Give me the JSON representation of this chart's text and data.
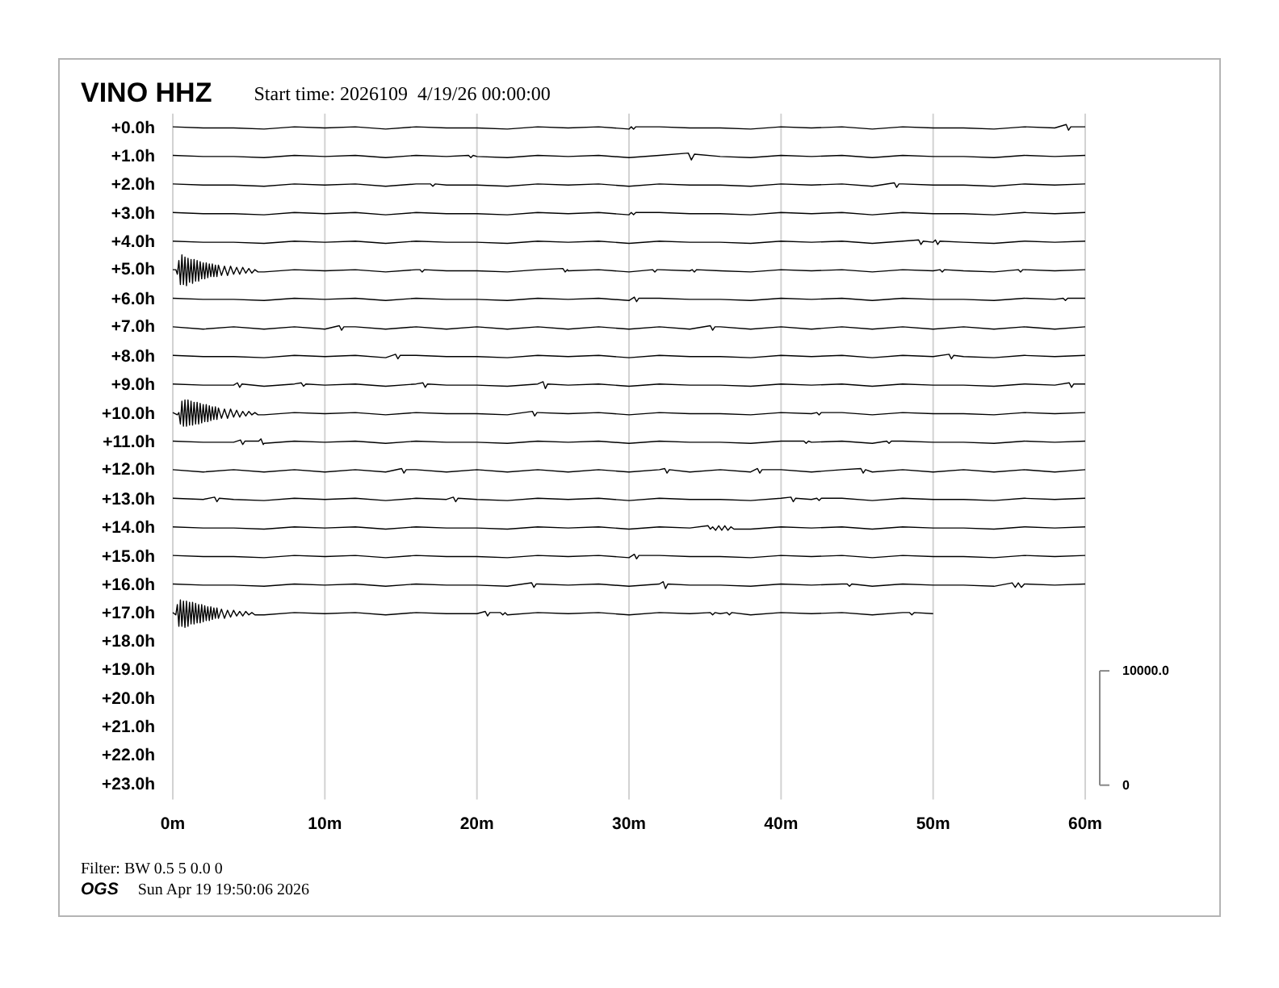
{
  "chart_data": {
    "type": "line",
    "title": "VINO HHZ",
    "subtitle": "Start time: 2026109  4/19/26 00:00:00",
    "annotations": [
      "+18.0h",
      "+19.0h",
      "+20.0h",
      "+21.0h",
      "+22.0h",
      "+23.0h",
      "Filter: BW 0.5 5 0.0 0",
      "OGS",
      "Sun Apr 19 19:50:06 2026"
    ],
    "xlim": [
      0,
      60
    ],
    "xticks": [
      {
        "value": 0,
        "label": "0m"
      },
      {
        "value": 10,
        "label": "10m"
      },
      {
        "value": 20,
        "label": "20m"
      },
      {
        "value": 30,
        "label": "30m"
      },
      {
        "value": 40,
        "label": "40m"
      },
      {
        "value": 50,
        "label": "50m"
      },
      {
        "value": 60,
        "label": "60m"
      }
    ],
    "ylim": [
      -1250,
      58750
    ],
    "yticks": [
      0,
      {
        "value": 10000,
        "label": "10000.0"
      }
    ],
    "grid": "x",
    "series": [
      {
        "name": "+0.0h",
        "color": "#000000",
        "x": [
          0,
          2,
          4,
          6,
          8,
          10,
          12,
          14,
          16,
          18,
          20,
          22,
          24,
          26,
          28,
          30,
          30.15,
          30.3,
          30.45,
          32,
          34,
          36,
          38,
          40,
          42,
          44,
          46,
          48,
          50,
          52,
          54,
          56,
          58,
          58.75,
          58.9,
          59.05,
          60
        ],
        "values": [
          57600,
          57500,
          57500,
          57400,
          57600,
          57500,
          57600,
          57400,
          57600,
          57500,
          57500,
          57400,
          57600,
          57500,
          57600,
          57400,
          57600,
          57400,
          57600,
          57600,
          57500,
          57500,
          57400,
          57600,
          57500,
          57600,
          57400,
          57600,
          57500,
          57500,
          57400,
          57600,
          57500,
          57800,
          57300,
          57600,
          57600
        ]
      },
      {
        "name": "+1.0h",
        "color": "#000000",
        "x": [
          0,
          2,
          4,
          6,
          8,
          10,
          12,
          14,
          16,
          18,
          19.45,
          19.6,
          19.75,
          20,
          22,
          24,
          26,
          28,
          30,
          32,
          33.9,
          34.1,
          34.3,
          36,
          38,
          40,
          42,
          44,
          46,
          48,
          50,
          52,
          54,
          56,
          58,
          60
        ],
        "values": [
          55100,
          55000,
          55000,
          54900,
          55100,
          55000,
          55100,
          54900,
          55100,
          55000,
          55100,
          54900,
          55100,
          55000,
          54900,
          55100,
          55000,
          55100,
          54900,
          55100,
          55300,
          54700,
          55200,
          55000,
          54900,
          55100,
          55000,
          55100,
          54900,
          55100,
          55000,
          55000,
          54900,
          55100,
          55000,
          55100
        ]
      },
      {
        "name": "+2.0h",
        "color": "#000000",
        "x": [
          0,
          2,
          4,
          6,
          8,
          10,
          12,
          14,
          16,
          16.95,
          17.1,
          17.25,
          18,
          20,
          22,
          24,
          26,
          28,
          30,
          32,
          34,
          36,
          38,
          40,
          42,
          44,
          46,
          47.45,
          47.6,
          47.75,
          48,
          50,
          52,
          54,
          56,
          58,
          60
        ],
        "values": [
          52600,
          52500,
          52500,
          52400,
          52600,
          52500,
          52600,
          52400,
          52600,
          52600,
          52400,
          52600,
          52500,
          52500,
          52400,
          52600,
          52500,
          52600,
          52400,
          52600,
          52500,
          52500,
          52400,
          52600,
          52500,
          52600,
          52400,
          52700,
          52300,
          52600,
          52600,
          52500,
          52500,
          52400,
          52600,
          52500,
          52600
        ]
      },
      {
        "name": "+3.0h",
        "color": "#000000",
        "x": [
          0,
          2,
          4,
          6,
          8,
          10,
          12,
          14,
          16,
          18,
          20,
          22,
          24,
          26,
          28,
          30,
          30.15,
          30.3,
          30.45,
          32,
          34,
          36,
          38,
          40,
          42,
          44,
          46,
          48,
          50,
          52,
          54,
          56,
          58,
          60
        ],
        "values": [
          50100,
          50000,
          50000,
          49900,
          50100,
          50000,
          50100,
          49900,
          50100,
          50000,
          50000,
          49900,
          50100,
          50000,
          50100,
          49900,
          50100,
          49900,
          50100,
          50100,
          50000,
          50000,
          49900,
          50100,
          50000,
          50100,
          49900,
          50100,
          50000,
          50000,
          49900,
          50100,
          50000,
          50100
        ]
      },
      {
        "name": "+4.0h",
        "color": "#000000",
        "x": [
          0,
          2,
          4,
          6,
          8,
          10,
          12,
          14,
          16,
          18,
          20,
          22,
          24,
          26,
          28,
          30,
          32,
          34,
          36,
          38,
          40,
          42,
          44,
          46,
          48,
          49.05,
          49.2,
          49.35,
          50,
          50.15,
          50.3,
          50.45,
          52,
          54,
          56,
          58,
          60
        ],
        "values": [
          47600,
          47500,
          47500,
          47400,
          47600,
          47500,
          47600,
          47400,
          47600,
          47500,
          47500,
          47400,
          47600,
          47500,
          47600,
          47400,
          47600,
          47500,
          47500,
          47400,
          47600,
          47500,
          47600,
          47400,
          47600,
          47700,
          47300,
          47600,
          47500,
          47700,
          47300,
          47600,
          47500,
          47400,
          47600,
          47500,
          47600
        ]
      },
      {
        "name": "+5.0h",
        "color": "#000000",
        "x": [
          0,
          0.2,
          0.3,
          0.4,
          0.5,
          0.6,
          0.7,
          0.8,
          0.9,
          1,
          1.1,
          1.2,
          1.3,
          1.4,
          1.5,
          1.6,
          1.7,
          1.8,
          1.9,
          2,
          2.1,
          2.2,
          2.3,
          2.4,
          2.5,
          2.6,
          2.7,
          2.8,
          2.9,
          3,
          3.2,
          3.4,
          3.6,
          3.8,
          4,
          4.2,
          4.4,
          4.6,
          4.8,
          5,
          5.2,
          5.4,
          5.6,
          6,
          8,
          10,
          12,
          14,
          16,
          16.25,
          16.4,
          16.55,
          18,
          20,
          22,
          24,
          25.65,
          25.8,
          25.95,
          26,
          28,
          30,
          31.55,
          31.7,
          31.85,
          32,
          34,
          34.15,
          34.3,
          34.45,
          36,
          38,
          40,
          42,
          44,
          46,
          48,
          50,
          50.45,
          50.6,
          50.75,
          52,
          54,
          55.6,
          55.75,
          55.9,
          56,
          58,
          60
        ],
        "values": [
          45100,
          45100,
          44700,
          45900,
          43800,
          46400,
          43800,
          46200,
          43700,
          46100,
          44000,
          46000,
          43900,
          46000,
          44100,
          45900,
          44100,
          45800,
          44300,
          45700,
          44300,
          45700,
          44400,
          45600,
          44500,
          45600,
          44500,
          45500,
          44500,
          45500,
          44600,
          45400,
          44600,
          45400,
          44700,
          45300,
          44700,
          45300,
          44800,
          45200,
          44800,
          45100,
          44900,
          44900,
          45100,
          45000,
          45100,
          44900,
          45100,
          45100,
          44900,
          45100,
          45000,
          45000,
          44900,
          45100,
          45200,
          44900,
          45100,
          45000,
          45100,
          44900,
          45100,
          44900,
          45100,
          45100,
          45000,
          45100,
          44900,
          45100,
          45000,
          44900,
          45100,
          45000,
          45100,
          44900,
          45100,
          45000,
          45100,
          44900,
          45100,
          45000,
          44900,
          45100,
          44900,
          45100,
          45100,
          45000,
          45100
        ]
      },
      {
        "name": "+6.0h",
        "color": "#000000",
        "x": [
          0,
          2,
          4,
          6,
          8,
          10,
          12,
          14,
          16,
          18,
          20,
          22,
          24,
          26,
          28,
          30,
          30.35,
          30.5,
          30.65,
          32,
          34,
          36,
          38,
          40,
          42,
          44,
          46,
          48,
          50,
          52,
          54,
          56,
          58,
          58.55,
          58.7,
          58.85,
          60
        ],
        "values": [
          42600,
          42500,
          42500,
          42400,
          42600,
          42500,
          42600,
          42400,
          42600,
          42500,
          42500,
          42400,
          42600,
          42500,
          42600,
          42400,
          42700,
          42300,
          42600,
          42600,
          42500,
          42500,
          42400,
          42600,
          42500,
          42600,
          42400,
          42600,
          42500,
          42500,
          42400,
          42600,
          42500,
          42600,
          42400,
          42600,
          42600
        ]
      },
      {
        "name": "+7.0h",
        "color": "#000000",
        "x": [
          0,
          2,
          4,
          6,
          8,
          10,
          10.95,
          11.1,
          11.25,
          12,
          14,
          16,
          18,
          20,
          22,
          24,
          26,
          28,
          30,
          32,
          34,
          35.35,
          35.5,
          35.65,
          36,
          38,
          40,
          42,
          44,
          46,
          48,
          50,
          52,
          54,
          56,
          58,
          60
        ],
        "values": [
          40100,
          39900,
          40100,
          39900,
          40100,
          39900,
          40200,
          39800,
          40100,
          40100,
          39900,
          40100,
          39900,
          40100,
          39900,
          40100,
          39900,
          40100,
          39900,
          40100,
          39900,
          40200,
          39800,
          40100,
          40100,
          39900,
          40100,
          39900,
          40100,
          39900,
          40100,
          39900,
          40100,
          39900,
          40100,
          39900,
          40100
        ]
      },
      {
        "name": "+8.0h",
        "color": "#000000",
        "x": [
          0,
          2,
          4,
          6,
          8,
          10,
          12,
          14,
          14.65,
          14.8,
          14.95,
          16,
          18,
          20,
          22,
          24,
          26,
          28,
          30,
          32,
          34,
          36,
          38,
          40,
          42,
          44,
          46,
          48,
          50,
          51.05,
          51.2,
          51.35,
          52,
          54,
          56,
          58,
          60
        ],
        "values": [
          37600,
          37500,
          37500,
          37400,
          37600,
          37500,
          37600,
          37400,
          37700,
          37300,
          37600,
          37600,
          37500,
          37500,
          37400,
          37600,
          37500,
          37600,
          37400,
          37600,
          37500,
          37500,
          37400,
          37600,
          37500,
          37600,
          37400,
          37600,
          37500,
          37700,
          37300,
          37600,
          37500,
          37400,
          37600,
          37500,
          37600
        ]
      },
      {
        "name": "+9.0h",
        "color": "#000000",
        "x": [
          0,
          2,
          4,
          4.25,
          4.4,
          4.55,
          6,
          8,
          8.45,
          8.6,
          8.75,
          10,
          12,
          14,
          16,
          16.45,
          16.6,
          16.75,
          18,
          20,
          22,
          24,
          24.35,
          24.5,
          24.65,
          26,
          28,
          30,
          32,
          34,
          36,
          38,
          40,
          42,
          44,
          46,
          48,
          50,
          52,
          54,
          56,
          58,
          58.95,
          59.1,
          59.25,
          60
        ],
        "values": [
          35100,
          35000,
          35000,
          35200,
          34800,
          35100,
          34900,
          35100,
          35200,
          34900,
          35100,
          35000,
          35100,
          34900,
          35100,
          35200,
          34800,
          35100,
          35000,
          35000,
          34900,
          35100,
          35300,
          34700,
          35100,
          35000,
          35100,
          34900,
          35100,
          35000,
          35000,
          34900,
          35100,
          35000,
          35100,
          34900,
          35100,
          35000,
          35000,
          34900,
          35100,
          35000,
          35200,
          34800,
          35100,
          35100
        ]
      },
      {
        "name": "+10.0h",
        "color": "#000000",
        "x": [
          0,
          0.3,
          0.4,
          0.5,
          0.6,
          0.7,
          0.8,
          0.9,
          1,
          1.1,
          1.2,
          1.3,
          1.4,
          1.5,
          1.6,
          1.7,
          1.8,
          1.9,
          2,
          2.1,
          2.2,
          2.3,
          2.4,
          2.5,
          2.6,
          2.7,
          2.8,
          2.9,
          3,
          3.2,
          3.4,
          3.6,
          3.8,
          4,
          4.2,
          4.4,
          4.6,
          4.8,
          5,
          5.2,
          5.4,
          5.6,
          6,
          8,
          10,
          12,
          14,
          16,
          18,
          20,
          22,
          23.65,
          23.8,
          23.95,
          24,
          26,
          28,
          30,
          32,
          34,
          36,
          38,
          40,
          42,
          42.35,
          42.5,
          42.65,
          44,
          46,
          48,
          50,
          52,
          54,
          56,
          58,
          60
        ],
        "values": [
          32600,
          32400,
          32600,
          31600,
          33600,
          31400,
          33700,
          31400,
          33700,
          31500,
          33600,
          31500,
          33500,
          31600,
          33500,
          31600,
          33400,
          31700,
          33300,
          31800,
          33300,
          31800,
          33200,
          31900,
          33100,
          32000,
          33100,
          32000,
          33000,
          32100,
          32900,
          32100,
          32900,
          32200,
          32800,
          32200,
          32700,
          32300,
          32700,
          32400,
          32600,
          32400,
          32400,
          32600,
          32500,
          32600,
          32400,
          32600,
          32500,
          32500,
          32400,
          32700,
          32300,
          32600,
          32600,
          32500,
          32600,
          32400,
          32600,
          32500,
          32500,
          32400,
          32600,
          32500,
          32600,
          32400,
          32600,
          32600,
          32400,
          32600,
          32500,
          32500,
          32400,
          32600,
          32500,
          32600
        ]
      },
      {
        "name": "+11.0h",
        "color": "#000000",
        "x": [
          0,
          2,
          4,
          4.45,
          4.6,
          4.75,
          5.65,
          5.8,
          5.95,
          6,
          8,
          10,
          12,
          14,
          16,
          18,
          20,
          22,
          24,
          26,
          28,
          30,
          32,
          34,
          36,
          38,
          40,
          41.5,
          41.65,
          41.8,
          42,
          44,
          46,
          46.95,
          47.1,
          47.25,
          48,
          50,
          52,
          54,
          56,
          58,
          60
        ],
        "values": [
          30100,
          30000,
          30000,
          30200,
          29800,
          30100,
          30100,
          30300,
          29800,
          29900,
          30100,
          30000,
          30100,
          29900,
          30100,
          30000,
          30000,
          29900,
          30100,
          30000,
          30100,
          29900,
          30100,
          30000,
          30000,
          29900,
          30100,
          30100,
          29900,
          30100,
          30000,
          30100,
          29900,
          30100,
          29900,
          30100,
          30100,
          30000,
          30000,
          29900,
          30100,
          30000,
          30100
        ]
      },
      {
        "name": "+12.0h",
        "color": "#000000",
        "x": [
          0,
          2,
          4,
          6,
          8,
          10,
          12,
          14,
          15.05,
          15.2,
          15.35,
          16,
          18,
          20,
          22,
          24,
          26,
          28,
          30,
          32,
          32.35,
          32.5,
          32.65,
          34,
          36,
          38,
          38.45,
          38.6,
          38.75,
          40,
          42,
          44,
          45.25,
          45.4,
          45.55,
          46,
          48,
          50,
          52,
          54,
          56,
          58,
          60
        ],
        "values": [
          27600,
          27400,
          27600,
          27400,
          27600,
          27400,
          27600,
          27400,
          27700,
          27300,
          27600,
          27600,
          27400,
          27600,
          27400,
          27600,
          27400,
          27600,
          27400,
          27600,
          27700,
          27300,
          27600,
          27400,
          27600,
          27400,
          27700,
          27300,
          27600,
          27600,
          27400,
          27600,
          27700,
          27300,
          27600,
          27400,
          27600,
          27400,
          27600,
          27400,
          27600,
          27400,
          27600
        ]
      },
      {
        "name": "+13.0h",
        "color": "#000000",
        "x": [
          0,
          2,
          2.75,
          2.9,
          3.05,
          4,
          6,
          8,
          10,
          12,
          14,
          16,
          18,
          18.45,
          18.6,
          18.75,
          20,
          22,
          24,
          26,
          28,
          30,
          32,
          34,
          36,
          38,
          40,
          40.65,
          40.8,
          40.95,
          42,
          42.35,
          42.5,
          42.65,
          44,
          46,
          48,
          50,
          52,
          54,
          56,
          58,
          60
        ],
        "values": [
          25100,
          25000,
          25200,
          24800,
          25100,
          25000,
          24900,
          25100,
          25000,
          25100,
          24900,
          25100,
          25000,
          25200,
          24800,
          25100,
          25000,
          24900,
          25100,
          25000,
          25100,
          24900,
          25100,
          25000,
          25000,
          24900,
          25100,
          25200,
          24800,
          25100,
          25000,
          25100,
          24900,
          25100,
          25100,
          24900,
          25100,
          25000,
          25000,
          24900,
          25100,
          25000,
          25100
        ]
      },
      {
        "name": "+14.0h",
        "color": "#000000",
        "x": [
          0,
          2,
          4,
          6,
          8,
          10,
          12,
          14,
          16,
          18,
          20,
          22,
          24,
          26,
          28,
          30,
          32,
          34,
          35.2,
          35.35,
          35.5,
          35.7,
          35.9,
          36.1,
          36.3,
          36.5,
          36.7,
          36.9,
          38,
          40,
          42,
          44,
          46,
          48,
          50,
          52,
          54,
          56,
          58,
          60
        ],
        "values": [
          22600,
          22500,
          22500,
          22400,
          22600,
          22500,
          22600,
          22400,
          22600,
          22500,
          22500,
          22400,
          22600,
          22500,
          22600,
          22400,
          22600,
          22500,
          22700,
          22400,
          22600,
          22300,
          22700,
          22300,
          22700,
          22300,
          22600,
          22400,
          22400,
          22600,
          22500,
          22600,
          22400,
          22600,
          22500,
          22500,
          22400,
          22600,
          22500,
          22600
        ]
      },
      {
        "name": "+15.0h",
        "color": "#000000",
        "x": [
          0,
          2,
          4,
          6,
          8,
          10,
          12,
          14,
          16,
          18,
          20,
          22,
          24,
          26,
          28,
          30,
          30.35,
          30.5,
          30.65,
          32,
          34,
          36,
          38,
          40,
          42,
          44,
          46,
          48,
          50,
          52,
          54,
          56,
          58,
          60
        ],
        "values": [
          20100,
          20000,
          20000,
          19900,
          20100,
          20000,
          20100,
          19900,
          20100,
          20000,
          20000,
          19900,
          20100,
          20000,
          20100,
          19900,
          20200,
          19800,
          20100,
          20100,
          20000,
          20000,
          19900,
          20100,
          20000,
          20100,
          19900,
          20100,
          20000,
          20000,
          19900,
          20100,
          20000,
          20100
        ]
      },
      {
        "name": "+16.0h",
        "color": "#000000",
        "x": [
          0,
          2,
          4,
          6,
          8,
          10,
          12,
          14,
          16,
          18,
          20,
          22,
          23.6,
          23.75,
          23.9,
          24,
          26,
          28,
          30,
          32,
          32.25,
          32.4,
          32.55,
          34,
          36,
          38,
          40,
          42,
          44,
          44.35,
          44.5,
          44.65,
          46,
          48,
          50,
          52,
          54,
          55.2,
          55.4,
          55.6,
          55.8,
          56,
          58,
          60
        ],
        "values": [
          17600,
          17500,
          17500,
          17400,
          17600,
          17500,
          17600,
          17400,
          17600,
          17500,
          17500,
          17400,
          17700,
          17300,
          17600,
          17600,
          17500,
          17600,
          17400,
          17600,
          17800,
          17200,
          17600,
          17500,
          17500,
          17400,
          17600,
          17500,
          17600,
          17600,
          17400,
          17600,
          17400,
          17600,
          17500,
          17500,
          17400,
          17700,
          17300,
          17700,
          17300,
          17600,
          17500,
          17600
        ]
      },
      {
        "name": "+17.0h",
        "color": "#000000",
        "x": [
          0,
          0.2,
          0.3,
          0.4,
          0.5,
          0.6,
          0.7,
          0.8,
          0.9,
          1,
          1.1,
          1.2,
          1.3,
          1.4,
          1.5,
          1.6,
          1.7,
          1.8,
          1.9,
          2,
          2.1,
          2.2,
          2.3,
          2.4,
          2.5,
          2.6,
          2.7,
          2.8,
          2.9,
          3,
          3.2,
          3.4,
          3.6,
          3.8,
          4,
          4.2,
          4.4,
          4.6,
          4.8,
          5,
          5.2,
          5.4,
          6,
          8,
          10,
          12,
          14,
          16,
          18,
          20,
          20.55,
          20.7,
          20.85,
          21.55,
          21.7,
          21.85,
          22,
          24,
          26,
          28,
          30,
          32,
          34,
          35.35,
          35.5,
          35.65,
          36,
          36.45,
          36.6,
          36.75,
          38,
          40,
          42,
          44,
          46,
          48,
          48.45,
          48.6,
          48.75,
          50
        ],
        "values": [
          15100,
          14900,
          15800,
          13900,
          16200,
          13900,
          16100,
          13800,
          16100,
          13900,
          16000,
          14100,
          16000,
          14100,
          15900,
          14200,
          15800,
          14200,
          15800,
          14300,
          15700,
          14400,
          15600,
          14400,
          15600,
          14500,
          15500,
          14600,
          15500,
          14600,
          15400,
          14600,
          15300,
          14700,
          15300,
          14800,
          15200,
          14800,
          15200,
          14900,
          15100,
          14900,
          14900,
          15100,
          15000,
          15100,
          14900,
          15100,
          15000,
          15000,
          15200,
          14800,
          15100,
          15100,
          14900,
          15100,
          14900,
          15100,
          15000,
          15100,
          14900,
          15100,
          15000,
          15100,
          14900,
          15100,
          15000,
          15100,
          14900,
          15100,
          14900,
          15100,
          15000,
          15100,
          14900,
          15100,
          15100,
          14900,
          15100,
          15000
        ]
      }
    ]
  }
}
